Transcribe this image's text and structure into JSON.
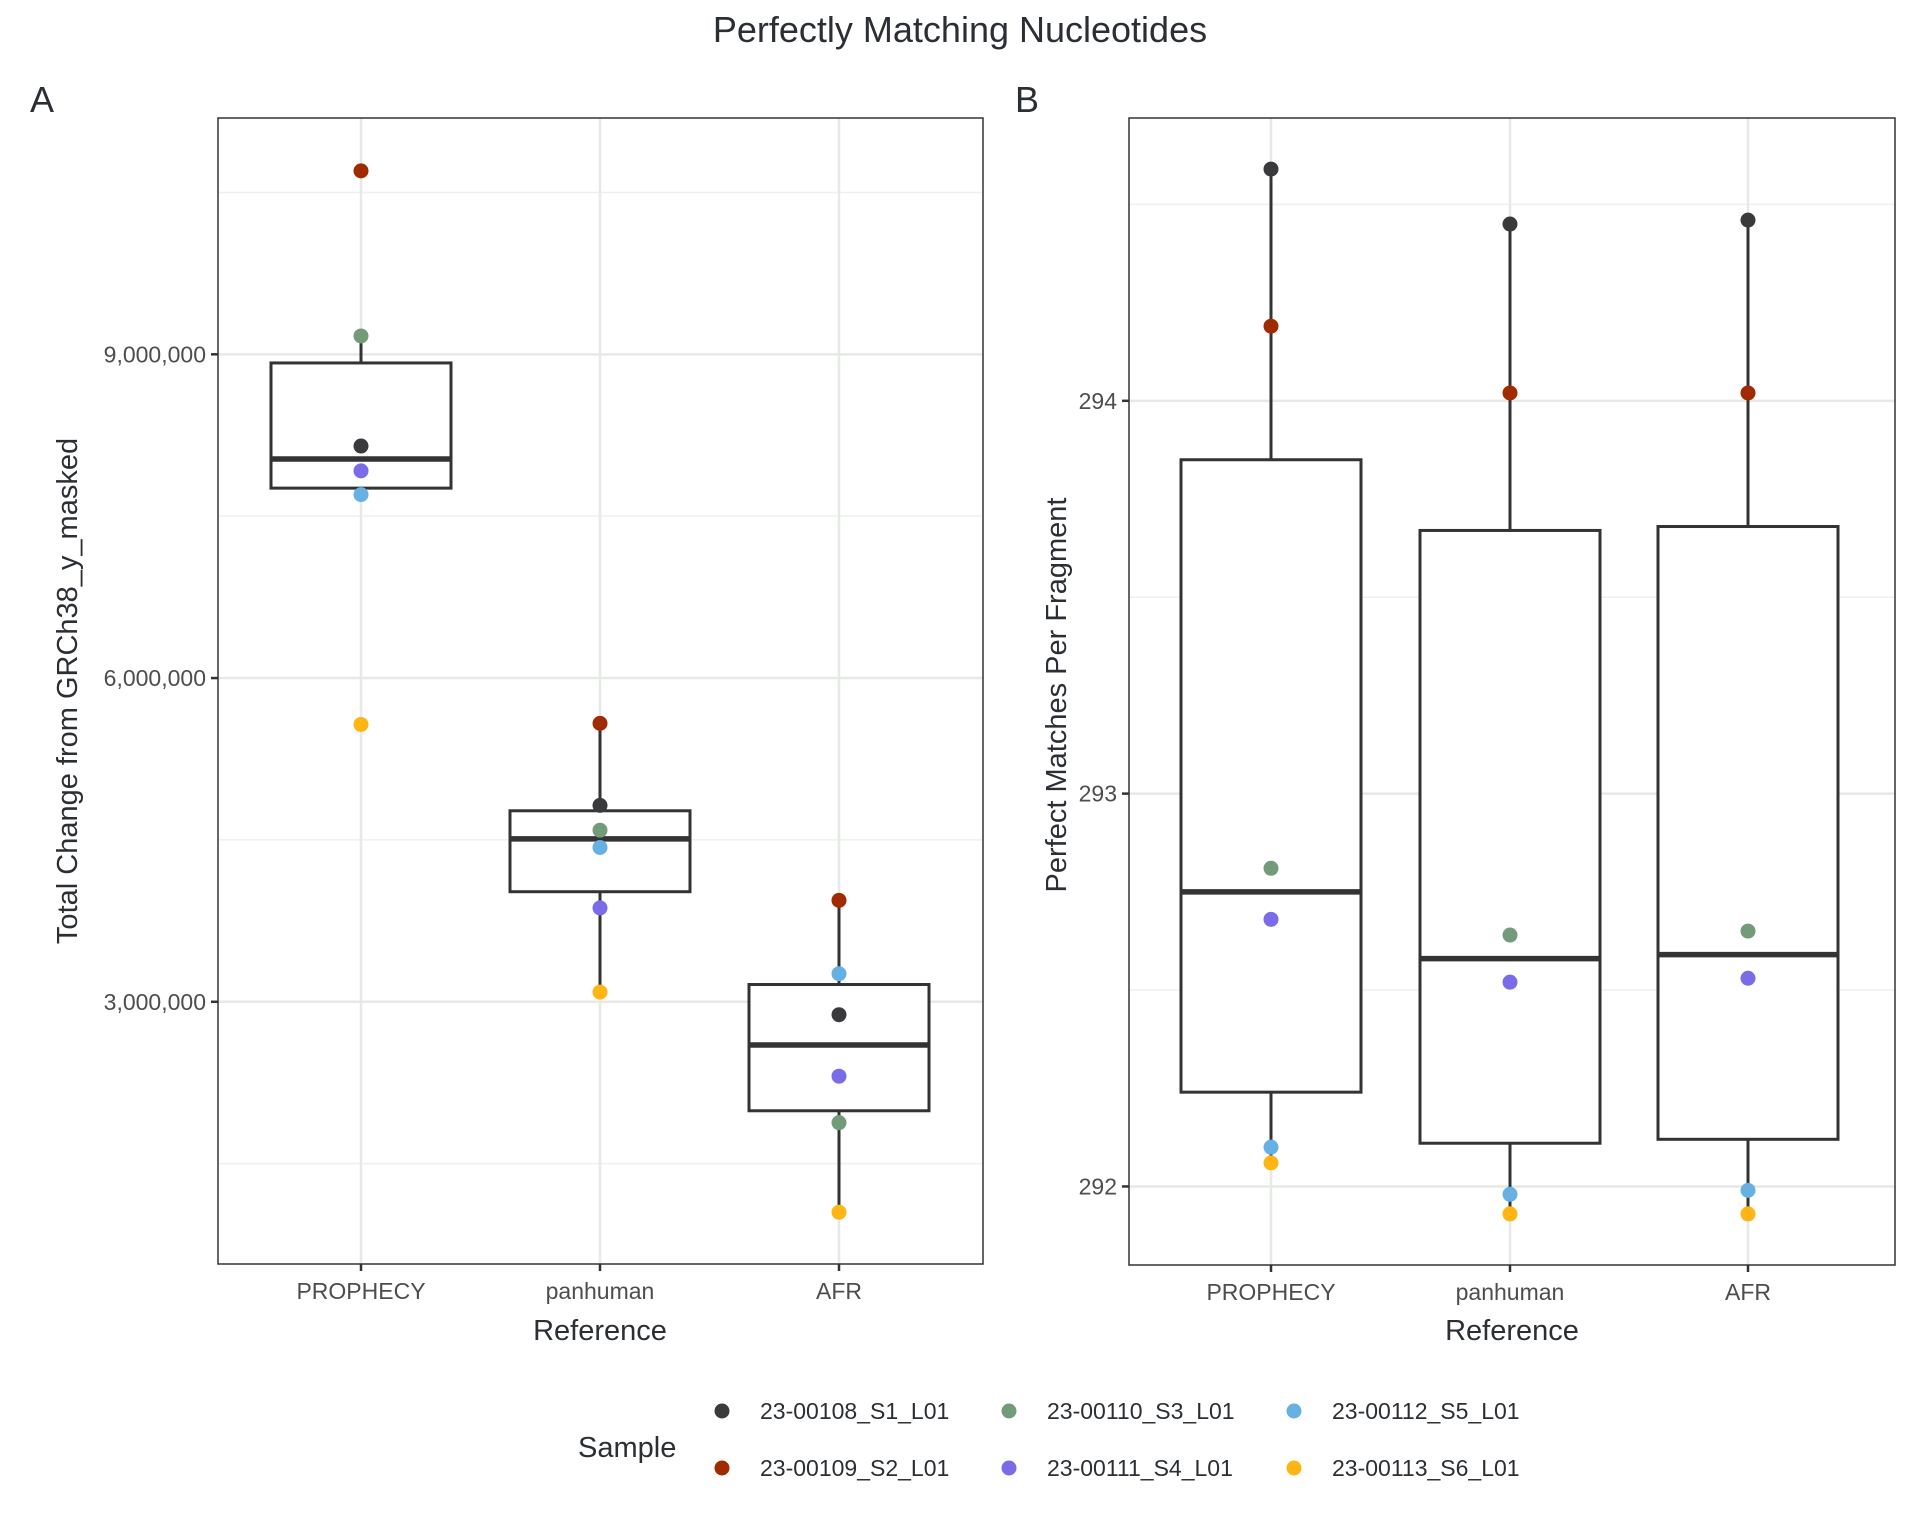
{
  "title": "Perfectly Matching Nucleotides",
  "chart_data": [
    {
      "panel_tag": "A",
      "type": "box",
      "title": "",
      "xlabel": "Reference",
      "ylabel": "Total Change from GRCh38_y_masked",
      "categories": [
        "PROPHECY",
        "panhuman",
        "AFR"
      ],
      "ylim": [
        570000,
        11190000
      ],
      "yticks": [
        3000000,
        6000000,
        9000000
      ],
      "ytick_labels": [
        "3,000,000",
        "6,000,000",
        "9,000,000"
      ],
      "minor_gridlines": [
        1500000,
        4500000,
        7500000,
        10500000
      ],
      "grid": true,
      "boxes": [
        {
          "category": "PROPHECY",
          "lower_whisker": 7700000,
          "q1": 7760000,
          "median": 8030000,
          "q3": 8920000,
          "upper_whisker": 9170000
        },
        {
          "category": "panhuman",
          "lower_whisker": 3090000,
          "q1": 4020000,
          "median": 4510000,
          "q3": 4770000,
          "upper_whisker": 5580000
        },
        {
          "category": "AFR",
          "lower_whisker": 1050000,
          "q1": 1990000,
          "median": 2600000,
          "q3": 3160000,
          "upper_whisker": 3940000
        }
      ],
      "outliers_hidden_note": "",
      "series": [
        {
          "name": "23-00108_S1_L01",
          "values": [
            8150000,
            4820000,
            2880000
          ]
        },
        {
          "name": "23-00109_S2_L01",
          "values": [
            10700000,
            5580000,
            3940000
          ]
        },
        {
          "name": "23-00110_S3_L01",
          "values": [
            9170000,
            4590000,
            1880000
          ]
        },
        {
          "name": "23-00111_S4_L01",
          "values": [
            7920000,
            3870000,
            2310000
          ]
        },
        {
          "name": "23-00112_S5_L01",
          "values": [
            7700000,
            4430000,
            3260000
          ]
        },
        {
          "name": "23-00113_S6_L01",
          "values": [
            5570000,
            3090000,
            1050000
          ]
        }
      ]
    },
    {
      "panel_tag": "B",
      "type": "box",
      "title": "",
      "xlabel": "Reference",
      "ylabel": "Perfect Matches Per Fragment",
      "categories": [
        "PROPHECY",
        "panhuman",
        "AFR"
      ],
      "ylim": [
        291.8,
        294.72
      ],
      "yticks": [
        292,
        293,
        294
      ],
      "ytick_labels": [
        "292",
        "293",
        "294"
      ],
      "minor_gridlines": [
        292.5,
        293.5,
        294.5
      ],
      "grid": true,
      "boxes": [
        {
          "category": "PROPHECY",
          "lower_whisker": 292.06,
          "q1": 292.24,
          "median": 292.75,
          "q3": 293.85,
          "upper_whisker": 294.59
        },
        {
          "category": "panhuman",
          "lower_whisker": 291.93,
          "q1": 292.11,
          "median": 292.58,
          "q3": 293.67,
          "upper_whisker": 294.45
        },
        {
          "category": "AFR",
          "lower_whisker": 291.93,
          "q1": 292.12,
          "median": 292.59,
          "q3": 293.68,
          "upper_whisker": 294.46
        }
      ],
      "series": [
        {
          "name": "23-00108_S1_L01",
          "values": [
            294.59,
            294.45,
            294.46
          ]
        },
        {
          "name": "23-00109_S2_L01",
          "values": [
            294.19,
            294.02,
            294.02
          ]
        },
        {
          "name": "23-00110_S3_L01",
          "values": [
            292.81,
            292.64,
            292.65
          ]
        },
        {
          "name": "23-00111_S4_L01",
          "values": [
            292.68,
            292.52,
            292.53
          ]
        },
        {
          "name": "23-00112_S5_L01",
          "values": [
            292.1,
            291.98,
            291.99
          ]
        },
        {
          "name": "23-00113_S6_L01",
          "values": [
            292.06,
            291.93,
            291.93
          ]
        }
      ]
    }
  ],
  "legend": {
    "title": "Sample",
    "placement": "bottom",
    "items": [
      {
        "label": "23-00108_S1_L01",
        "color": "#3a3a3c"
      },
      {
        "label": "23-00109_S2_L01",
        "color": "#a02b00"
      },
      {
        "label": "23-00110_S3_L01",
        "color": "#739b7a"
      },
      {
        "label": "23-00111_S4_L01",
        "color": "#7a6ce8"
      },
      {
        "label": "23-00112_S5_L01",
        "color": "#66b0e4"
      },
      {
        "label": "23-00113_S6_L01",
        "color": "#ffb514"
      }
    ]
  }
}
